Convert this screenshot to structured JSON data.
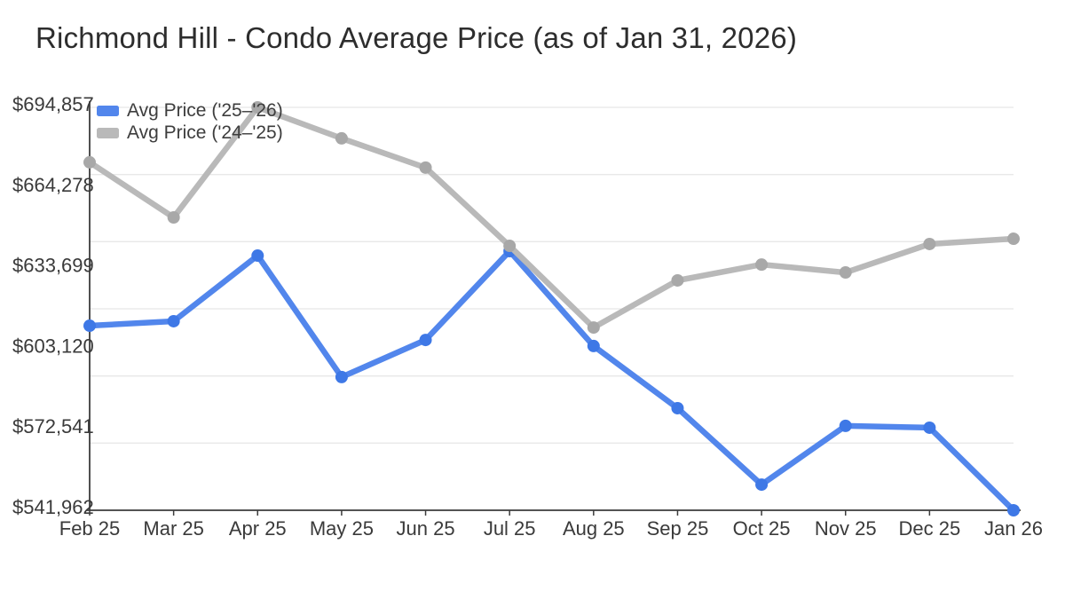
{
  "title": "Richmond Hill - Condo Average Price (as of Jan 31, 2026)",
  "chart_data": {
    "type": "line",
    "title": "Richmond Hill - Condo Average Price (as of Jan 31, 2026)",
    "categories": [
      "Feb 25",
      "Mar 25",
      "Apr 25",
      "May 25",
      "Jun 25",
      "Jul 25",
      "Aug 25",
      "Sep 25",
      "Oct 25",
      "Nov 25",
      "Dec 25",
      "Jan 26"
    ],
    "series": [
      {
        "name": "Avg Price ('25–'26)",
        "color": "#5286ec",
        "marker_color": "#3e78e6",
        "values": [
          612000,
          613700,
          638600,
          592500,
          606600,
          640300,
          604300,
          580700,
          551700,
          574000,
          573300,
          541962
        ]
      },
      {
        "name": "Avg Price ('24–'25)",
        "color": "#b9b9b9",
        "marker_color": "#a8a8a8",
        "values": [
          674000,
          653100,
          694857,
          683100,
          672000,
          642300,
          611300,
          629200,
          635200,
          632200,
          643000,
          645000
        ]
      }
    ],
    "ylim": [
      541962,
      694857
    ],
    "y_tick_labels": [
      "$694,857",
      "$664,278",
      "$633,699",
      "$603,120",
      "$572,541",
      "$541,962"
    ],
    "grid": true,
    "grid_divisions": 6,
    "legend_position": "top-left",
    "colors": {
      "axis": "#3c3c3c",
      "grid": "#e8e8e8",
      "tick_label": "#3a3a3a"
    }
  }
}
